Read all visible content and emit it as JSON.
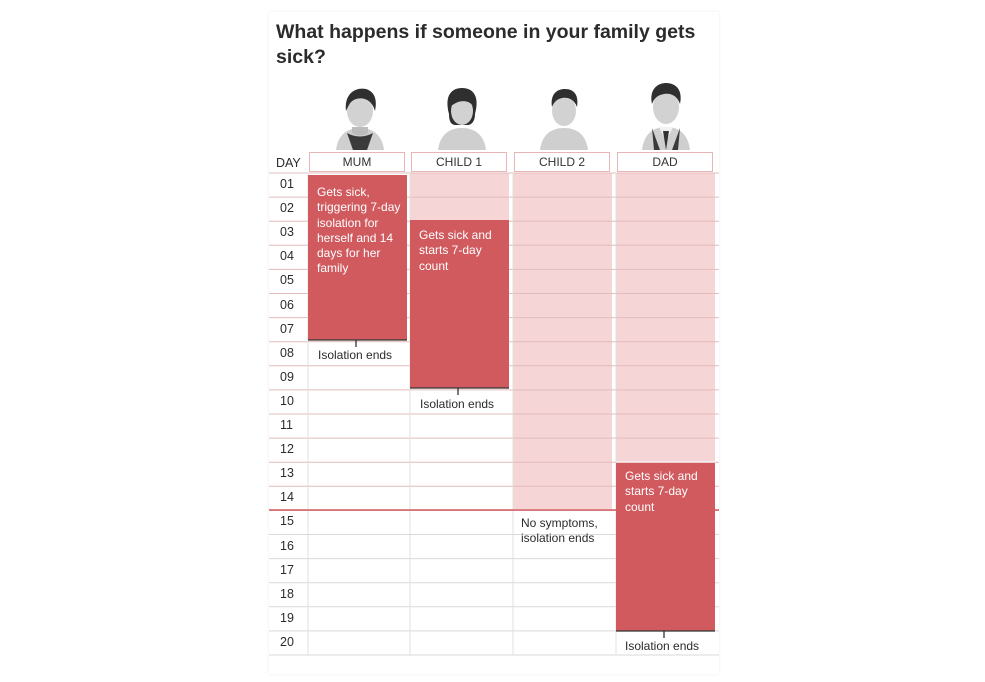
{
  "title": "What happens if someone in your family gets sick?",
  "day_header": "DAY",
  "days": [
    "01",
    "02",
    "03",
    "04",
    "05",
    "06",
    "07",
    "08",
    "09",
    "10",
    "11",
    "12",
    "13",
    "14",
    "15",
    "16",
    "17",
    "18",
    "19",
    "20"
  ],
  "members": [
    {
      "name": "MUM",
      "icon": "woman-short-hair-icon",
      "sick_note": "Gets sick, triggering 7-day isolation for herself and 14 days for her family",
      "end_note": "Isolation ends"
    },
    {
      "name": "CHILD 1",
      "icon": "girl-icon",
      "sick_note": "Gets sick and starts 7-day count",
      "end_note": "Isolation ends"
    },
    {
      "name": "CHILD 2",
      "icon": "boy-icon",
      "end_note": "No symptoms, isolation ends"
    },
    {
      "name": "DAD",
      "icon": "man-icon",
      "sick_note": "Gets sick and starts 7-day count",
      "end_note": "Isolation ends"
    }
  ],
  "periods": {
    "mum": {
      "sick_from": 1,
      "sick_to": 7
    },
    "child1": {
      "household_from": 1,
      "household_to": 2,
      "sick_from": 3,
      "sick_to": 9
    },
    "child2": {
      "household_from": 1,
      "household_to": 14
    },
    "dad": {
      "household_from": 1,
      "household_to": 12,
      "sick_from": 13,
      "sick_to": 19
    }
  },
  "colors": {
    "sick": "#d05a5e",
    "household": "#f5d5d5",
    "grid": "#d9d9d9",
    "household_grid": "#e6b3b3",
    "marker_line": "#d05a5e"
  }
}
